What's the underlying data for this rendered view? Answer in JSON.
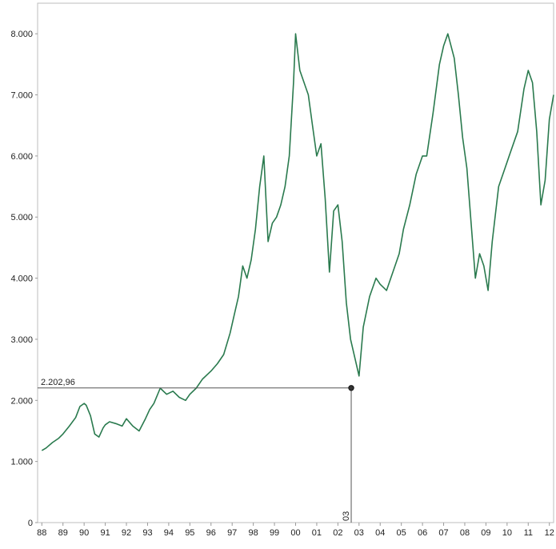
{
  "chart_data": {
    "type": "line",
    "title": "",
    "xlabel": "",
    "ylabel": "",
    "xlim": [
      1987.8,
      2012.2
    ],
    "ylim": [
      0,
      8500
    ],
    "y_ticks": [
      0,
      1000,
      2000,
      3000,
      4000,
      5000,
      6000,
      7000,
      8000
    ],
    "y_tick_labels": [
      "0",
      "1.000",
      "2.000",
      "3.000",
      "4.000",
      "5.000",
      "6.000",
      "7.000",
      "8.000"
    ],
    "x_ticks": [
      1988,
      1989,
      1990,
      1991,
      1992,
      1993,
      1994,
      1995,
      1996,
      1997,
      1998,
      1999,
      2000,
      2001,
      2002,
      2003,
      2004,
      2005,
      2006,
      2007,
      2008,
      2009,
      2010,
      2011,
      2012
    ],
    "x_tick_labels": [
      "88",
      "89",
      "90",
      "91",
      "92",
      "93",
      "94",
      "95",
      "96",
      "97",
      "98",
      "99",
      "00",
      "01",
      "02",
      "03",
      "04",
      "05",
      "06",
      "07",
      "08",
      "09",
      "10",
      "11",
      "12"
    ],
    "grid": false,
    "line_color": "#2a7a4e",
    "series": [
      {
        "x": [
          1988.0,
          1988.2,
          1988.5,
          1988.8,
          1989.0,
          1989.3,
          1989.6,
          1989.8,
          1990.0,
          1990.1,
          1990.3,
          1990.5,
          1990.7,
          1990.9,
          1991.0,
          1991.2,
          1991.5,
          1991.8,
          1992.0,
          1992.3,
          1992.6,
          1992.9,
          1993.1,
          1993.3,
          1993.6,
          1993.9,
          1994.2,
          1994.5,
          1994.8,
          1995.0,
          1995.3,
          1995.6,
          1996.0,
          1996.3,
          1996.6,
          1996.9,
          1997.1,
          1997.3,
          1997.5,
          1997.7,
          1997.9,
          1998.1,
          1998.3,
          1998.5,
          1998.7,
          1998.9,
          1999.1,
          1999.3,
          1999.5,
          1999.7,
          1999.9,
          2000.0,
          2000.2,
          2000.4,
          2000.6,
          2000.8,
          2001.0,
          2001.2,
          2001.4,
          2001.6,
          2001.8,
          2002.0,
          2002.2,
          2002.4,
          2002.6,
          2002.8,
          2003.0,
          2003.2,
          2003.5,
          2003.8,
          2004.0,
          2004.3,
          2004.6,
          2004.9,
          2005.1,
          2005.4,
          2005.7,
          2006.0,
          2006.2,
          2006.5,
          2006.8,
          2007.0,
          2007.2,
          2007.5,
          2007.7,
          2007.9,
          2008.1,
          2008.3,
          2008.5,
          2008.7,
          2008.9,
          2009.1,
          2009.3,
          2009.6,
          2009.9,
          2010.2,
          2010.5,
          2010.8,
          2011.0,
          2011.2,
          2011.4,
          2011.6,
          2011.8,
          2012.0,
          2012.2
        ],
        "y": [
          1180,
          1220,
          1310,
          1380,
          1450,
          1580,
          1720,
          1900,
          1950,
          1920,
          1750,
          1450,
          1400,
          1550,
          1600,
          1650,
          1620,
          1580,
          1700,
          1580,
          1500,
          1700,
          1850,
          1950,
          2200,
          2100,
          2150,
          2050,
          2000,
          2100,
          2200,
          2350,
          2480,
          2600,
          2750,
          3100,
          3400,
          3700,
          4200,
          4000,
          4300,
          4800,
          5500,
          6000,
          4600,
          4900,
          5000,
          5200,
          5500,
          6000,
          7200,
          8000,
          7400,
          7200,
          7000,
          6500,
          6000,
          6200,
          5300,
          4100,
          5100,
          5200,
          4600,
          3600,
          3000,
          2700,
          2400,
          3200,
          3700,
          4000,
          3900,
          3800,
          4100,
          4400,
          4800,
          5200,
          5700,
          6000,
          6000,
          6700,
          7500,
          7800,
          8000,
          7600,
          7000,
          6300,
          5800,
          4900,
          4000,
          4400,
          4200,
          3800,
          4600,
          5500,
          5800,
          6100,
          6400,
          7100,
          7400,
          7200,
          6400,
          5200,
          5600,
          6600,
          7000
        ]
      }
    ],
    "highlight": {
      "x": 2002.63,
      "y": 2202.96,
      "y_label": "2.202,96",
      "x_label": "03"
    }
  }
}
